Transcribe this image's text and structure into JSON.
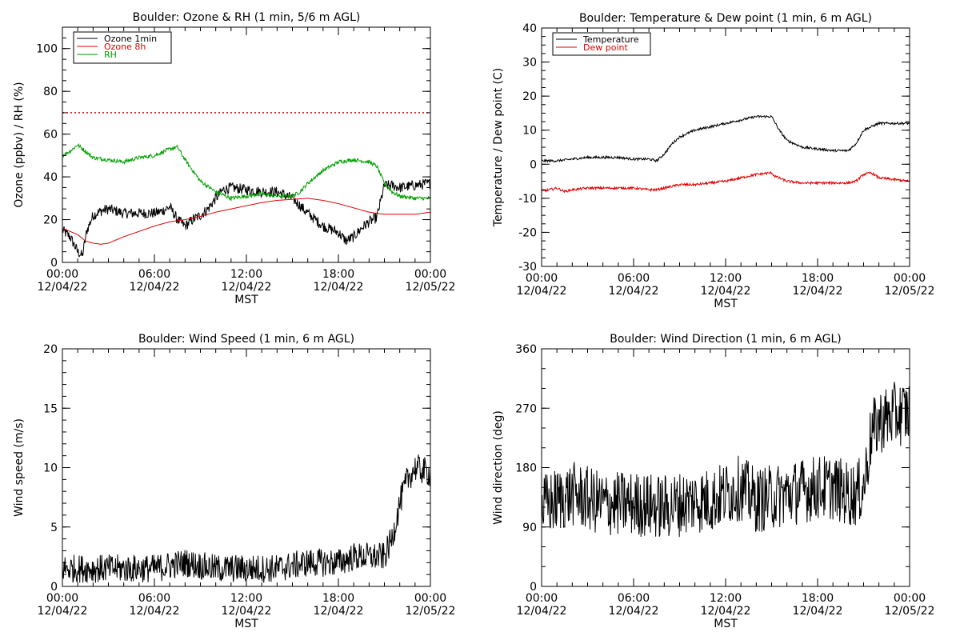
{
  "colors": {
    "black": "#000000",
    "red": "#e00000",
    "green": "#00a000",
    "ref_line": "#e00000"
  },
  "chart_data": [
    {
      "type": "line",
      "title": "Boulder: Ozone & RH (1 min, 5/6 m AGL)",
      "xlabel": "MST",
      "ylabel": "Ozone (ppbv) / RH (%)",
      "x_ticks": [
        {
          "time": "00:00",
          "date": "12/04/22"
        },
        {
          "time": "06:00",
          "date": "12/04/22"
        },
        {
          "time": "12:00",
          "date": "12/04/22"
        },
        {
          "time": "18:00",
          "date": "12/04/22"
        },
        {
          "time": "00:00",
          "date": "12/05/22"
        }
      ],
      "xlim": [
        0,
        24
      ],
      "ylim": [
        0,
        110
      ],
      "y_ticks": [
        0,
        20,
        40,
        60,
        80,
        100
      ],
      "legend": "top-left",
      "reference_lines": [
        {
          "y": 70,
          "style": "dotted",
          "color": "red"
        }
      ],
      "series": [
        {
          "name": "Ozone 1min",
          "color": "black",
          "noise": 2.5,
          "x": [
            0,
            0.5,
            1,
            1.3,
            1.6,
            2,
            2.5,
            3,
            4,
            5,
            6,
            6.5,
            7,
            7.5,
            8,
            8.5,
            9,
            9.5,
            10,
            10.5,
            11,
            12,
            13,
            14,
            15,
            16,
            17,
            18,
            18.5,
            19,
            19.5,
            20,
            20.5,
            21,
            21.5,
            22,
            23,
            24
          ],
          "y": [
            15,
            12,
            5,
            3,
            15,
            22,
            24,
            25,
            23,
            23,
            23,
            24,
            26,
            20,
            17,
            20,
            22,
            25,
            30,
            34,
            35,
            34,
            33,
            33,
            30,
            23,
            17,
            14,
            10,
            12,
            16,
            19,
            21,
            36,
            36,
            35,
            36,
            37
          ]
        },
        {
          "name": "Ozone 8h",
          "color": "red",
          "noise": 0,
          "x": [
            0,
            1,
            1.5,
            2,
            2.5,
            3,
            4,
            5,
            6,
            7,
            8,
            9,
            10,
            11,
            12,
            13,
            14,
            15,
            16,
            17,
            18,
            19,
            20,
            21,
            22,
            23,
            24
          ],
          "y": [
            16,
            13,
            10,
            9,
            8.5,
            9,
            12,
            14.5,
            17,
            19,
            20,
            21.5,
            23.5,
            25,
            26.5,
            28,
            29,
            29.5,
            30,
            29,
            27.5,
            25.5,
            23.5,
            22.5,
            22.5,
            22.5,
            23.5
          ]
        },
        {
          "name": "RH",
          "color": "green",
          "noise": 0.9,
          "x": [
            0,
            0.5,
            1,
            1.5,
            2,
            3,
            4,
            5,
            6,
            7,
            7.5,
            8,
            8.5,
            9,
            10,
            11,
            12,
            13,
            14,
            15,
            15.5,
            16,
            17,
            18,
            19,
            20,
            20.5,
            21,
            21.5,
            22,
            23,
            24
          ],
          "y": [
            50,
            52,
            55,
            52,
            49,
            48,
            47,
            49,
            50,
            53,
            54,
            48,
            43,
            38,
            33,
            30,
            31,
            32,
            31,
            31,
            33,
            37,
            43,
            47,
            48,
            47,
            45,
            37,
            33,
            31,
            30,
            30
          ]
        }
      ]
    },
    {
      "type": "line",
      "title": "Boulder: Temperature & Dew point (1 min, 6 m AGL)",
      "xlabel": "MST",
      "ylabel": "Temperature / Dew point (C)",
      "x_ticks": [
        {
          "time": "00:00",
          "date": "12/04/22"
        },
        {
          "time": "06:00",
          "date": "12/04/22"
        },
        {
          "time": "12:00",
          "date": "12/04/22"
        },
        {
          "time": "18:00",
          "date": "12/04/22"
        },
        {
          "time": "00:00",
          "date": "12/05/22"
        }
      ],
      "xlim": [
        0,
        24
      ],
      "ylim": [
        -30,
        40
      ],
      "y_ticks": [
        -30,
        -20,
        -10,
        0,
        10,
        20,
        30,
        40
      ],
      "legend": "top-left",
      "series": [
        {
          "name": "Temperature",
          "color": "black",
          "noise": 0.35,
          "x": [
            0,
            1,
            2,
            3,
            4,
            5,
            6,
            7,
            7.5,
            8,
            8.5,
            9,
            10,
            11,
            12,
            13,
            14,
            15,
            15.5,
            16,
            17,
            18,
            19,
            20,
            20.5,
            21,
            22,
            23,
            24
          ],
          "y": [
            1,
            1,
            1.5,
            2,
            2,
            2,
            1.5,
            1.5,
            1,
            3,
            6,
            8,
            10,
            11,
            12,
            13,
            14,
            14,
            10,
            7,
            5,
            4.5,
            4,
            4,
            6,
            10,
            12,
            12,
            12
          ]
        },
        {
          "name": "Dew point",
          "color": "red",
          "noise": 0.35,
          "x": [
            0,
            0.5,
            1,
            1.5,
            2,
            3,
            4,
            5,
            6,
            7,
            7.5,
            8,
            9,
            10,
            11,
            12,
            13,
            14,
            15,
            15.2,
            16,
            17,
            18,
            19,
            20,
            20.5,
            21,
            21.5,
            22,
            23,
            24
          ],
          "y": [
            -8,
            -7.5,
            -7,
            -8,
            -7.5,
            -7,
            -7,
            -7,
            -7,
            -7.5,
            -7.5,
            -7,
            -6,
            -6,
            -5.5,
            -5,
            -4,
            -3,
            -2.5,
            -3.5,
            -5,
            -5.5,
            -5.5,
            -5.5,
            -5.5,
            -5,
            -3,
            -2.5,
            -4,
            -4.5,
            -5
          ]
        }
      ]
    },
    {
      "type": "line",
      "title": "Boulder: Wind Speed (1 min, 6 m AGL)",
      "xlabel": "MST",
      "ylabel": "Wind speed (m/s)",
      "x_ticks": [
        {
          "time": "00:00",
          "date": "12/04/22"
        },
        {
          "time": "06:00",
          "date": "12/04/22"
        },
        {
          "time": "12:00",
          "date": "12/04/22"
        },
        {
          "time": "18:00",
          "date": "12/04/22"
        },
        {
          "time": "00:00",
          "date": "12/05/22"
        }
      ],
      "xlim": [
        0,
        24
      ],
      "ylim": [
        0,
        20
      ],
      "y_ticks": [
        0,
        5,
        10,
        15,
        20
      ],
      "series": [
        {
          "color": "black",
          "noise": 1.2,
          "clip": [
            0,
            20
          ],
          "x": [
            0,
            2,
            4,
            6,
            8,
            10,
            12,
            14,
            16,
            18,
            19,
            20,
            21,
            21.5,
            22,
            22.5,
            23,
            24
          ],
          "y": [
            1.5,
            1.5,
            1.5,
            1.5,
            2,
            1.5,
            1.5,
            1.5,
            2,
            2,
            2.5,
            2.5,
            2.5,
            4,
            7,
            9,
            10,
            9.5
          ]
        }
      ]
    },
    {
      "type": "line",
      "title": "Boulder: Wind Direction (1 min, 6 m AGL)",
      "xlabel": "MST",
      "ylabel": "Wind direction (deg)",
      "x_ticks": [
        {
          "time": "00:00",
          "date": "12/04/22"
        },
        {
          "time": "06:00",
          "date": "12/04/22"
        },
        {
          "time": "12:00",
          "date": "12/04/22"
        },
        {
          "time": "18:00",
          "date": "12/04/22"
        },
        {
          "time": "00:00",
          "date": "12/05/22"
        }
      ],
      "xlim": [
        0,
        24
      ],
      "ylim": [
        0,
        360
      ],
      "y_ticks": [
        0,
        90,
        180,
        270,
        360
      ],
      "series": [
        {
          "color": "black",
          "noise": 50,
          "clip": [
            0,
            360
          ],
          "x": [
            0,
            2,
            4,
            6,
            8,
            10,
            11,
            12,
            13,
            14,
            16,
            18,
            19,
            20,
            20.5,
            21,
            21.5,
            22,
            23,
            24
          ],
          "y": [
            120,
            140,
            125,
            125,
            120,
            130,
            130,
            140,
            150,
            130,
            140,
            150,
            150,
            140,
            140,
            150,
            230,
            250,
            260,
            265
          ]
        }
      ]
    }
  ]
}
